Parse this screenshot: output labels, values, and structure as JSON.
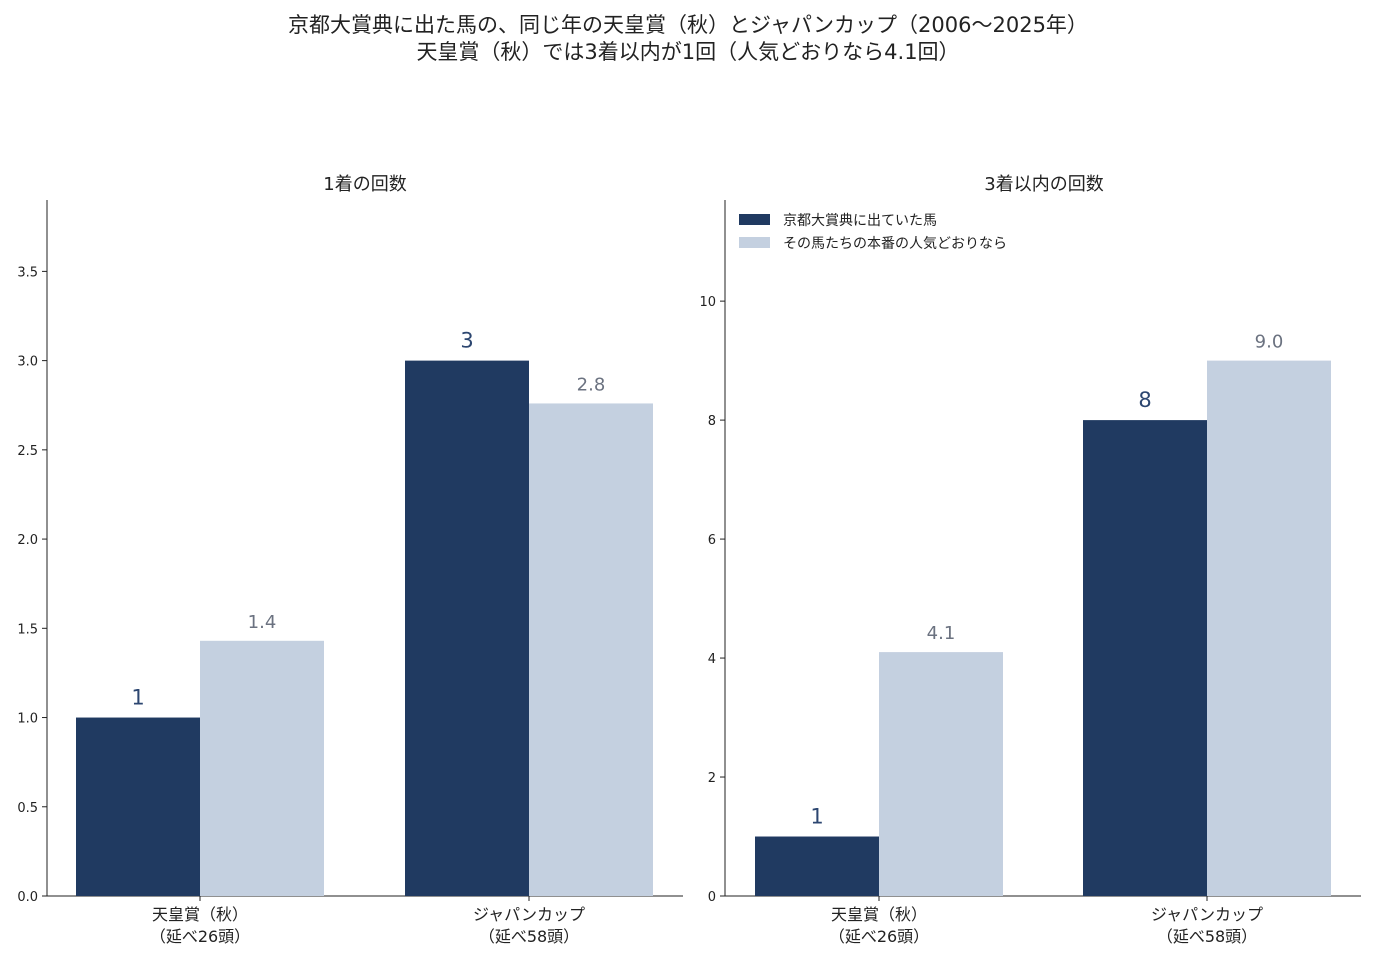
{
  "figure": {
    "title_line1": "京都大賞典に出た馬の、同じ年の天皇賞（秋）とジャパンカップ（2006〜2025年）",
    "title_line2": "天皇賞（秋）では3着以内が1回（人気どおりなら4.1回）"
  },
  "colors": {
    "actual": "#203a61",
    "expected": "#c4d0e0",
    "actual_label": "#2c4670",
    "expected_label": "#6b7280"
  },
  "chart_data": [
    {
      "type": "bar",
      "title": "1着の回数",
      "categories": [
        "天皇賞（秋）\n（延べ26頭）",
        "ジャパンカップ\n（延べ58頭）"
      ],
      "series": [
        {
          "name": "京都大賞典に出ていた馬",
          "values": [
            1,
            3
          ],
          "labels": [
            "1",
            "3"
          ]
        },
        {
          "name": "その馬たちの本番の人気どおりなら",
          "values": [
            1.43,
            2.76
          ],
          "labels": [
            "1.4",
            "2.8"
          ]
        }
      ],
      "ylim": [
        0,
        3.9
      ],
      "yticks": [
        0,
        0.5,
        1,
        1.5,
        2,
        2.5,
        3,
        3.5
      ],
      "ytick_labels": [
        "0.0",
        "0.5",
        "1.0",
        "1.5",
        "2.0",
        "2.5",
        "3.0",
        "3.5"
      ],
      "legend": "none",
      "grid": false
    },
    {
      "type": "bar",
      "title": "3着以内の回数",
      "categories": [
        "天皇賞（秋）\n（延べ26頭）",
        "ジャパンカップ\n（延べ58頭）"
      ],
      "series": [
        {
          "name": "京都大賞典に出ていた馬",
          "values": [
            1,
            8
          ],
          "labels": [
            "1",
            "8"
          ]
        },
        {
          "name": "その馬たちの本番の人気どおりなら",
          "values": [
            4.1,
            9.0
          ],
          "labels": [
            "4.1",
            "9.0"
          ]
        }
      ],
      "ylim": [
        0,
        11.7
      ],
      "yticks": [
        0,
        2,
        4,
        6,
        8,
        10
      ],
      "ytick_labels": [
        "0",
        "2",
        "4",
        "6",
        "8",
        "10"
      ],
      "legend": "top-left",
      "grid": false
    }
  ]
}
